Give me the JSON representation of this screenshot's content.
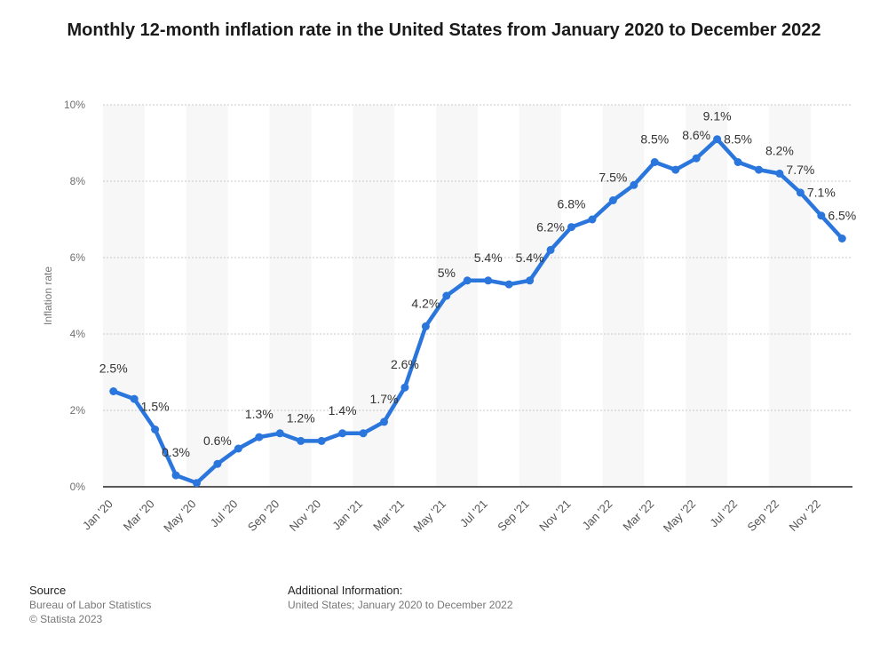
{
  "chart_data": {
    "type": "line",
    "title": "Monthly 12-month inflation rate in the United States from January 2020 to December 2022",
    "ylabel": "Inflation rate",
    "xlabel": "",
    "ylim": [
      0,
      10
    ],
    "y_ticks": [
      "0%",
      "2%",
      "4%",
      "6%",
      "8%",
      "10%"
    ],
    "y_tick_values": [
      0,
      2,
      4,
      6,
      8,
      10
    ],
    "grid": true,
    "line_color": "#2a76dd",
    "categories": [
      "Jan '20",
      "Feb '20",
      "Mar '20",
      "Apr '20",
      "May '20",
      "Jun '20",
      "Jul '20",
      "Aug '20",
      "Sep '20",
      "Oct '20",
      "Nov '20",
      "Dec '20",
      "Jan '21",
      "Feb '21",
      "Mar '21",
      "Apr '21",
      "May '21",
      "Jun '21",
      "Jul '21",
      "Aug '21",
      "Sep '21",
      "Oct '21",
      "Nov '21",
      "Dec '21",
      "Jan '22",
      "Feb '22",
      "Mar '22",
      "Apr '22",
      "May '22",
      "Jun '22",
      "Jul '22",
      "Aug '22",
      "Sep '22",
      "Oct '22",
      "Nov '22",
      "Dec '22"
    ],
    "x_tick_labels": [
      "Jan '20",
      "Mar '20",
      "May '20",
      "Jul '20",
      "Sep '20",
      "Nov '20",
      "Jan '21",
      "Mar '21",
      "May '21",
      "Jul '21",
      "Sep '21",
      "Nov '21",
      "Jan '22",
      "Mar '22",
      "May '22",
      "Jul '22",
      "Sep '22",
      "Nov '22"
    ],
    "values": [
      2.5,
      2.3,
      1.5,
      0.3,
      0.1,
      0.6,
      1.0,
      1.3,
      1.4,
      1.2,
      1.2,
      1.4,
      1.4,
      1.7,
      2.6,
      4.2,
      5.0,
      5.4,
      5.4,
      5.3,
      5.4,
      6.2,
      6.8,
      7.0,
      7.5,
      7.9,
      8.5,
      8.3,
      8.6,
      9.1,
      8.5,
      8.3,
      8.2,
      7.7,
      7.1,
      6.5
    ],
    "data_labels": [
      {
        "index": 0,
        "text": "2.5%"
      },
      {
        "index": 2,
        "text": "1.5%"
      },
      {
        "index": 3,
        "text": "0.3%"
      },
      {
        "index": 5,
        "text": "0.6%"
      },
      {
        "index": 7,
        "text": "1.3%"
      },
      {
        "index": 9,
        "text": "1.2%"
      },
      {
        "index": 11,
        "text": "1.4%"
      },
      {
        "index": 13,
        "text": "1.7%"
      },
      {
        "index": 14,
        "text": "2.6%"
      },
      {
        "index": 15,
        "text": "4.2%"
      },
      {
        "index": 16,
        "text": "5%"
      },
      {
        "index": 18,
        "text": "5.4%"
      },
      {
        "index": 20,
        "text": "5.4%"
      },
      {
        "index": 21,
        "text": "6.2%"
      },
      {
        "index": 22,
        "text": "6.8%"
      },
      {
        "index": 24,
        "text": "7.5%"
      },
      {
        "index": 26,
        "text": "8.5%"
      },
      {
        "index": 28,
        "text": "8.6%"
      },
      {
        "index": 29,
        "text": "9.1%"
      },
      {
        "index": 30,
        "text": "8.5%"
      },
      {
        "index": 32,
        "text": "8.2%"
      },
      {
        "index": 33,
        "text": "7.7%"
      },
      {
        "index": 34,
        "text": "7.1%"
      },
      {
        "index": 35,
        "text": "6.5%"
      }
    ]
  },
  "footer": {
    "source_heading": "Source",
    "source_line1": "Bureau of Labor Statistics",
    "source_line2": "© Statista 2023",
    "info_heading": "Additional Information:",
    "info_line1": "United States; January 2020 to December 2022"
  }
}
